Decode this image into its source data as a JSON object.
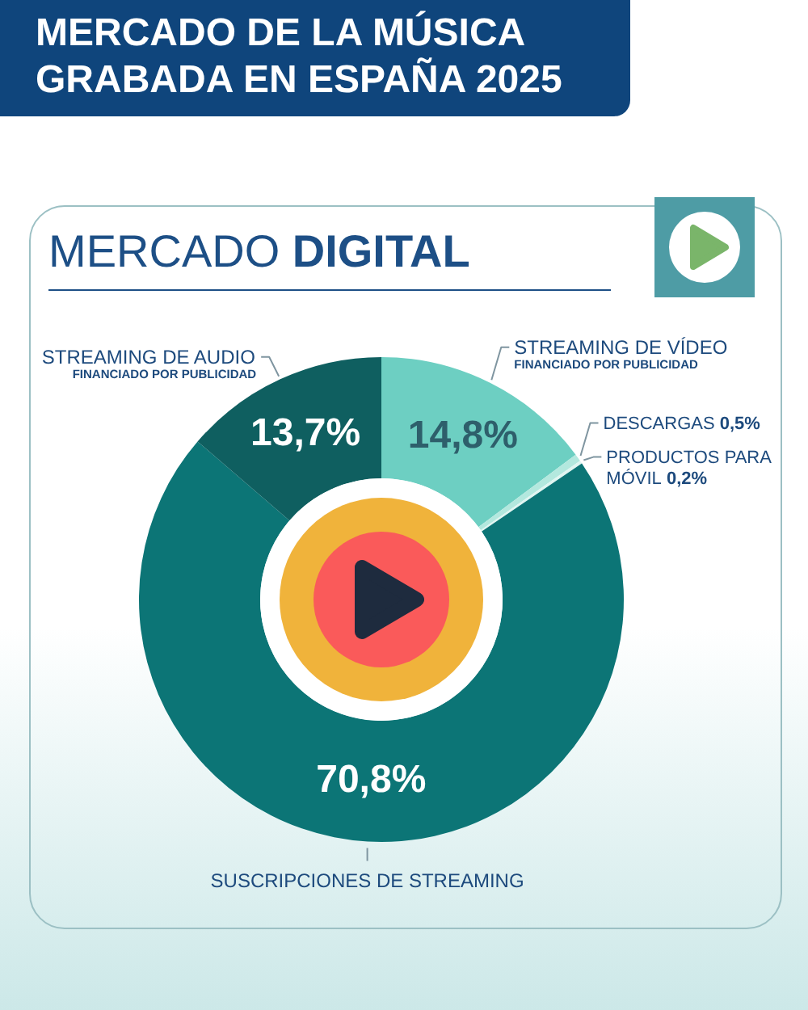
{
  "chart_data": {
    "type": "donut",
    "title": "MERCADO DE LA MÚSICA GRABADA EN ESPAÑA 2025",
    "subtitle": "MERCADO DIGITAL",
    "categories": [
      "STREAMING DE VÍDEO\nFINANCIADO POR PUBLICIDAD",
      "DESCARGAS",
      "PRODUCTOS PARA\nMÓVIL",
      "SUSCRIPCIONES DE STREAMING",
      "STREAMING DE AUDIO\nFINANCIADO POR PUBLICIDAD"
    ],
    "values": [
      14.8,
      0.5,
      0.2,
      70.8,
      13.7
    ],
    "colors": [
      "#6dcfc2",
      "#b3e8de",
      "#e0f5f1",
      "#0c7576",
      "#0f5f60"
    ],
    "value_labels": [
      "14,8%",
      "0,5%",
      "0,2%",
      "70,8%",
      "13,7%"
    ]
  }
}
